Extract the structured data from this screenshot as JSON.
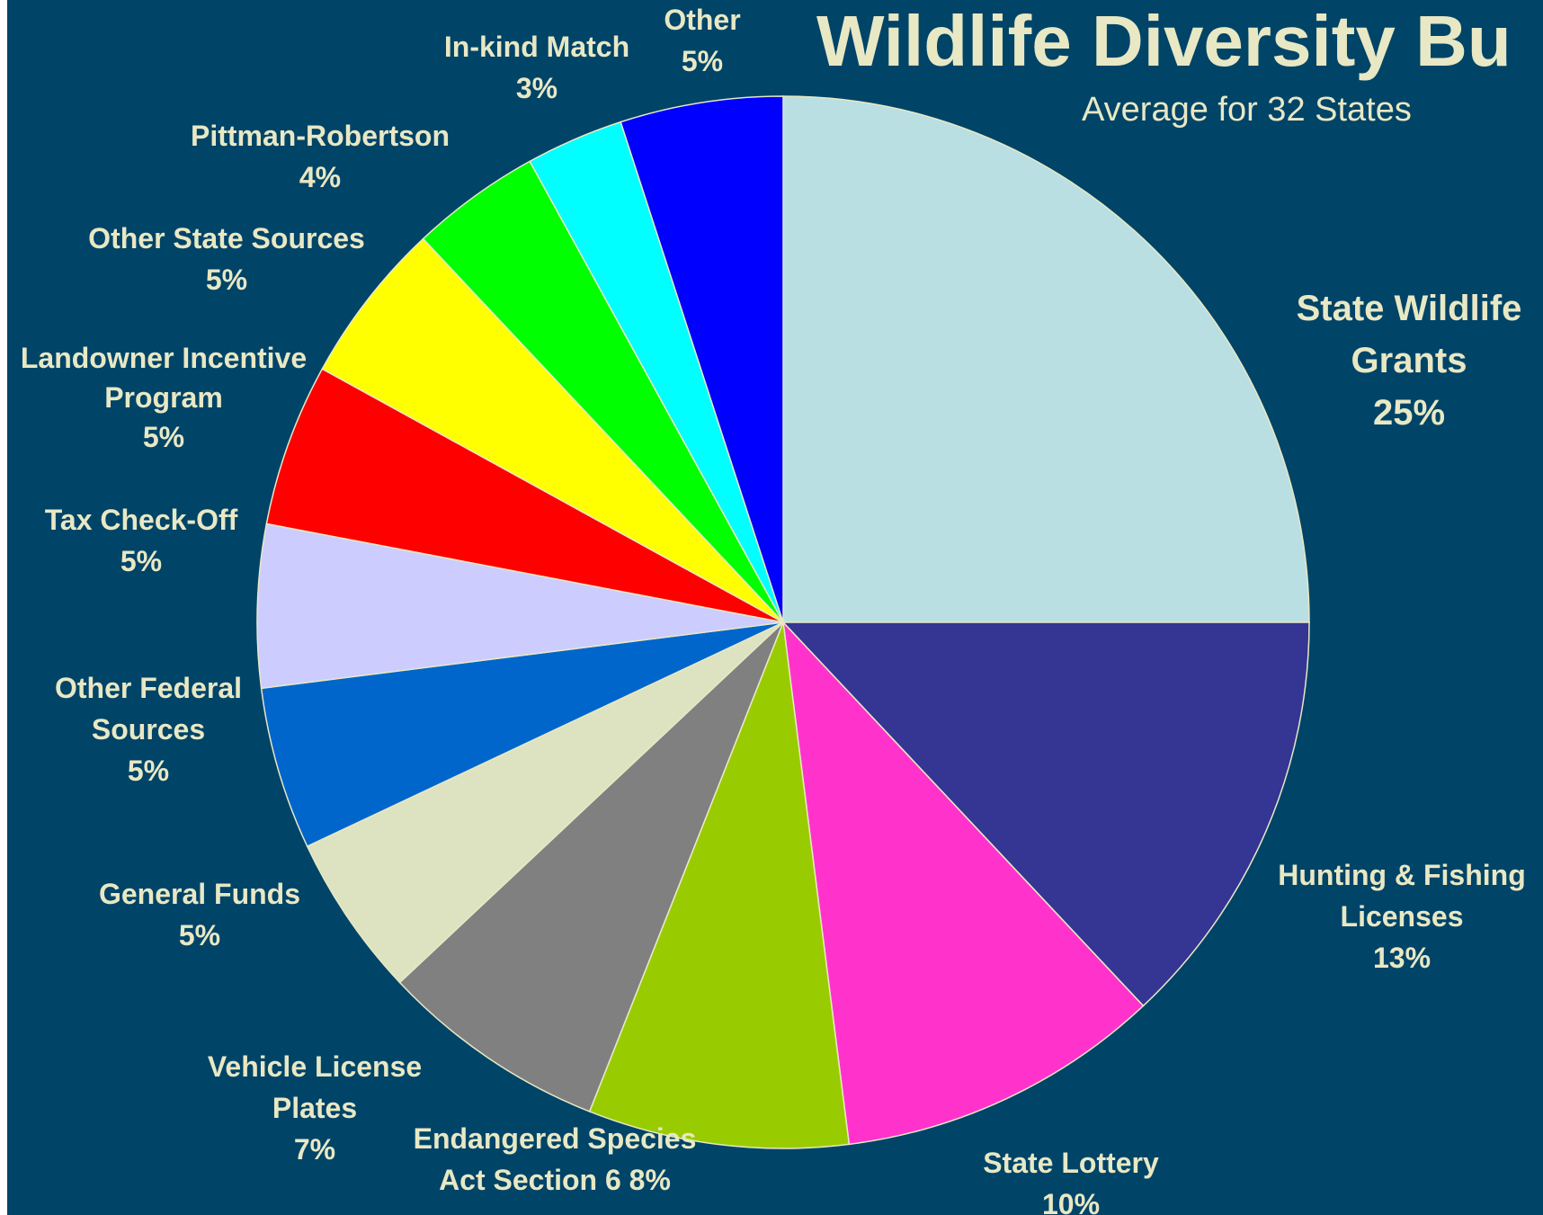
{
  "title": "Wildlife Diversity Bu",
  "subtitle": "Average for 32 States",
  "colors": {
    "background": "#004468",
    "text": "#e8e8c4",
    "slice_border": "#e8e8c4"
  },
  "chart_data": {
    "type": "pie",
    "title": "Wildlife Diversity Bu",
    "subtitle": "Average for 32 States",
    "start": "12 o'clock",
    "direction": "clockwise",
    "slices": [
      {
        "label": [
          "State Wildlife",
          "Grants",
          "25%"
        ],
        "value": 25,
        "color": "#b9dfe2"
      },
      {
        "label": [
          "Hunting & Fishing",
          "Licenses",
          "13%"
        ],
        "value": 13,
        "color": "#353594"
      },
      {
        "label": [
          "State Lottery",
          "10%"
        ],
        "value": 10,
        "color": "#ff33cc"
      },
      {
        "label": [
          "Endangered Species",
          "Act Section 6 8%"
        ],
        "value": 8,
        "color": "#99cc00"
      },
      {
        "label": [
          "Vehicle License",
          "Plates",
          "7%"
        ],
        "value": 7,
        "color": "#808080"
      },
      {
        "label": [
          "General Funds",
          "5%"
        ],
        "value": 5,
        "color": "#dde2c1"
      },
      {
        "label": [
          "Other Federal",
          "Sources",
          "5%"
        ],
        "value": 5,
        "color": "#0066cc"
      },
      {
        "label": [
          "Tax Check-Off",
          "5%"
        ],
        "value": 5,
        "color": "#ccccff"
      },
      {
        "label": [
          "Landowner Incentive",
          "Program",
          "5%"
        ],
        "value": 5,
        "color": "#ff0000"
      },
      {
        "label": [
          "Other State Sources",
          "5%"
        ],
        "value": 5,
        "color": "#ffff00"
      },
      {
        "label": [
          "Pittman-Robertson",
          "4%"
        ],
        "value": 4,
        "color": "#00ff00"
      },
      {
        "label": [
          "In-kind Match",
          "3%"
        ],
        "value": 3,
        "color": "#00ffff"
      },
      {
        "label": [
          "Other",
          "5%"
        ],
        "value": 5,
        "color": "#0000ff"
      }
    ]
  }
}
